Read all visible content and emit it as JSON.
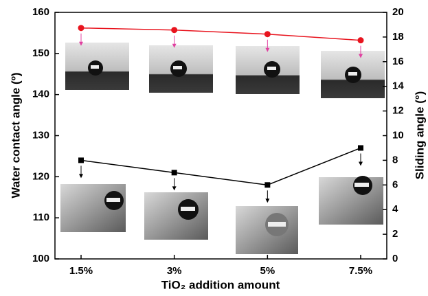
{
  "chart_data": {
    "type": "line",
    "x_label": "TiO₂ addition amount",
    "y_label": "Water contact angle (º)",
    "y2_label": "Sliding angle (°)",
    "categories": [
      "1.5%",
      "3%",
      "5%",
      "7.5%"
    ],
    "series": [
      {
        "color": "#e8141e",
        "values": [
          156.2,
          155.7,
          154.7,
          153.2
        ]
      },
      {
        "color": "#000000",
        "axis": "y2",
        "values": [
          8,
          7,
          6,
          9
        ]
      }
    ],
    "ylim": [
      100,
      160
    ],
    "yticks": [
      100,
      110,
      120,
      130,
      140,
      150,
      160
    ],
    "y2lim": [
      0,
      20
    ],
    "y2ticks": [
      0,
      2,
      4,
      6,
      8,
      10,
      12,
      14,
      16,
      18,
      20
    ]
  }
}
